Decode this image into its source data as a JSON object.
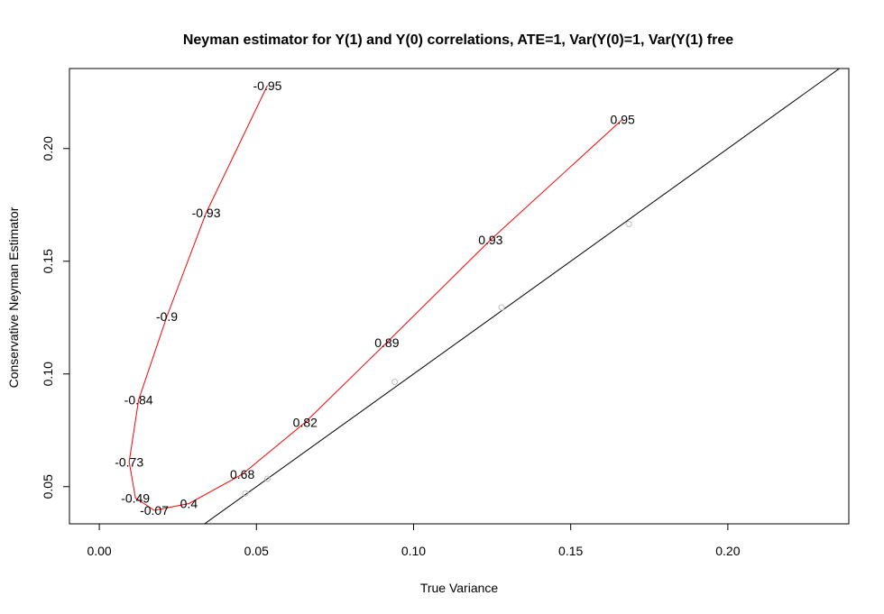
{
  "chart_data": {
    "type": "scatter",
    "title": "Neyman estimator for  Y(1) and Y(0) correlations, ATE=1, Var(Y(0)=1, Var(Y(1) free",
    "xlabel": "True Variance",
    "ylabel": "Conservative Neyman Estimator",
    "xlim": [
      -0.0095,
      0.2385
    ],
    "ylim": [
      0.0335,
      0.2355
    ],
    "x_ticks": [
      "0.00",
      "0.05",
      "0.10",
      "0.15",
      "0.20"
    ],
    "y_ticks": [
      "0.05",
      "0.10",
      "0.15",
      "0.20"
    ],
    "grid": false,
    "reference_line": {
      "slope": 1,
      "intercept": 0,
      "color": "#000000"
    },
    "series": [
      {
        "color": "#ff0000",
        "points": [
          {
            "label": "-0.95",
            "x": 0.0535,
            "y": 0.228
          },
          {
            "label": "-0.93",
            "x": 0.034,
            "y": 0.1715
          },
          {
            "label": "-0.9",
            "x": 0.0215,
            "y": 0.1255
          },
          {
            "label": "-0.84",
            "x": 0.0125,
            "y": 0.0885
          },
          {
            "label": "-0.73",
            "x": 0.0095,
            "y": 0.061
          },
          {
            "label": "-0.49",
            "x": 0.0115,
            "y": 0.045
          },
          {
            "label": "-0.07",
            "x": 0.0175,
            "y": 0.0395
          },
          {
            "label": "0.4",
            "x": 0.0285,
            "y": 0.0425
          },
          {
            "label": "0.68",
            "x": 0.0455,
            "y": 0.0555
          },
          {
            "label": "0.82",
            "x": 0.0655,
            "y": 0.0785
          },
          {
            "label": "0.89",
            "x": 0.0915,
            "y": 0.114
          },
          {
            "label": "0.93",
            "x": 0.1245,
            "y": 0.1595
          },
          {
            "label": "0.95",
            "x": 0.1665,
            "y": 0.213
          }
        ]
      },
      {
        "color": "#bdbdbd",
        "points": [
          {
            "x": 0.0465,
            "y": 0.047
          },
          {
            "x": 0.0535,
            "y": 0.0535
          },
          {
            "x": 0.094,
            "y": 0.0965
          },
          {
            "x": 0.128,
            "y": 0.1295
          },
          {
            "x": 0.1685,
            "y": 0.1665
          }
        ]
      }
    ]
  }
}
